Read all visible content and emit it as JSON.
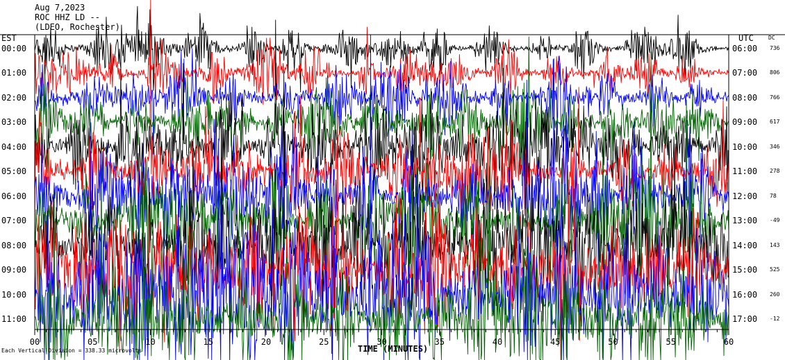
{
  "header": {
    "date": "Aug 7,2023",
    "station": "ROC HHZ LD --",
    "location": "(LDEO, Rochester)"
  },
  "left_axis_label": "EST",
  "right_axis_label": "UTC",
  "dc_label": "DC",
  "x_axis_label": "TIME (MINUTES)",
  "footer_scale": "Each Vertical Division = 338.33 microvolts",
  "colors": {
    "black": "#000000",
    "red": "#ff0000",
    "blue": "#0000ff",
    "green": "#006400"
  },
  "chart_data": {
    "type": "line",
    "xlabel": "TIME (MINUTES)",
    "xlim": [
      0,
      60
    ],
    "x_ticks": [
      "00",
      "05",
      "10",
      "15",
      "20",
      "25",
      "30",
      "35",
      "40",
      "45",
      "50",
      "55",
      "60"
    ],
    "rows": [
      {
        "est": "00:00",
        "utc": "06:00",
        "dc": "736",
        "color": "black"
      },
      {
        "est": "01:00",
        "utc": "07:00",
        "dc": "806",
        "color": "red"
      },
      {
        "est": "02:00",
        "utc": "08:00",
        "dc": "766",
        "color": "blue"
      },
      {
        "est": "03:00",
        "utc": "09:00",
        "dc": "617",
        "color": "green"
      },
      {
        "est": "04:00",
        "utc": "10:00",
        "dc": "346",
        "color": "black"
      },
      {
        "est": "05:00",
        "utc": "11:00",
        "dc": "278",
        "color": "red"
      },
      {
        "est": "06:00",
        "utc": "12:00",
        "dc": "78",
        "color": "blue"
      },
      {
        "est": "07:00",
        "utc": "13:00",
        "dc": "-49",
        "color": "green"
      },
      {
        "est": "08:00",
        "utc": "14:00",
        "dc": "143",
        "color": "black"
      },
      {
        "est": "09:00",
        "utc": "15:00",
        "dc": "525",
        "color": "red"
      },
      {
        "est": "10:00",
        "utc": "16:00",
        "dc": "260",
        "color": "blue"
      },
      {
        "est": "11:00",
        "utc": "17:00",
        "dc": "-12",
        "color": "green"
      }
    ]
  }
}
